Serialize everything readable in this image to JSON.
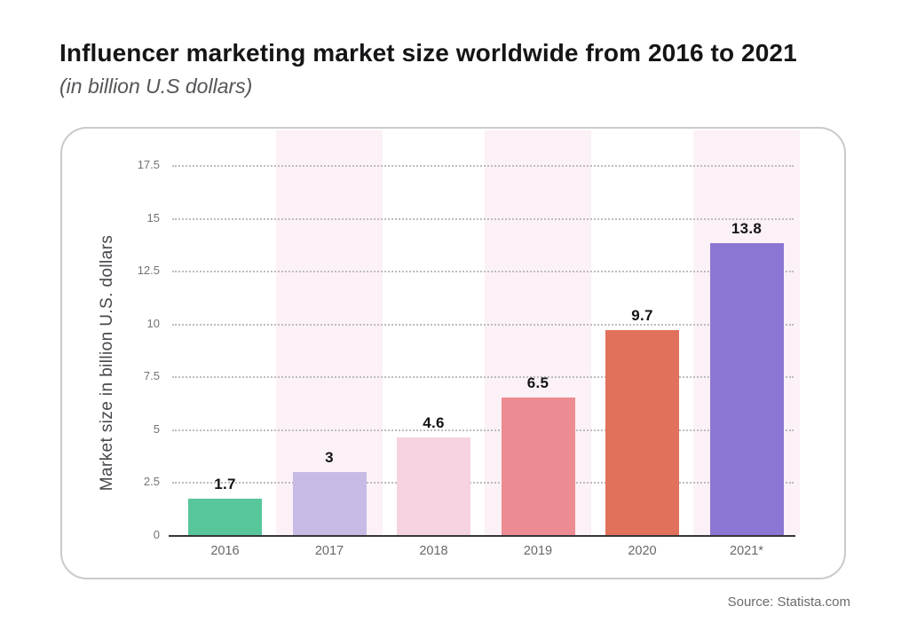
{
  "header": {
    "title": "Influencer marketing market size worldwide from 2016 to 2021",
    "subtitle": "(in billion U.S dollars)"
  },
  "footer": {
    "source": "Source: Statista.com"
  },
  "chart_data": {
    "type": "bar",
    "title": "Influencer marketing market size worldwide from 2016 to 2021",
    "subtitle": "(in billion U.S dollars)",
    "categories": [
      "2016",
      "2017",
      "2018",
      "2019",
      "2020",
      "2021*"
    ],
    "values": [
      1.7,
      3,
      4.6,
      6.5,
      9.7,
      13.8
    ],
    "value_labels": [
      "1.7",
      "3",
      "4.6",
      "6.5",
      "9.7",
      "13.8"
    ],
    "bar_colors": [
      "#57c69b",
      "#c7bbe6",
      "#f6d3e1",
      "#ec8b91",
      "#e2715b",
      "#8b76d3"
    ],
    "xlabel": "",
    "ylabel": "Market size in billion U.S. dollars",
    "ylim": [
      0,
      17.5
    ],
    "yticks": [
      0,
      2.5,
      5,
      7.5,
      10,
      12.5,
      15,
      17.5
    ],
    "ytick_labels": [
      "0",
      "2.5",
      "5",
      "7.5",
      "10",
      "12.5",
      "15",
      "17.5"
    ],
    "grid": "horizontal-dotted",
    "legend": "none",
    "striped_column_indexes": [
      1,
      3,
      5
    ],
    "stripe_color": "#fcf1f6"
  }
}
